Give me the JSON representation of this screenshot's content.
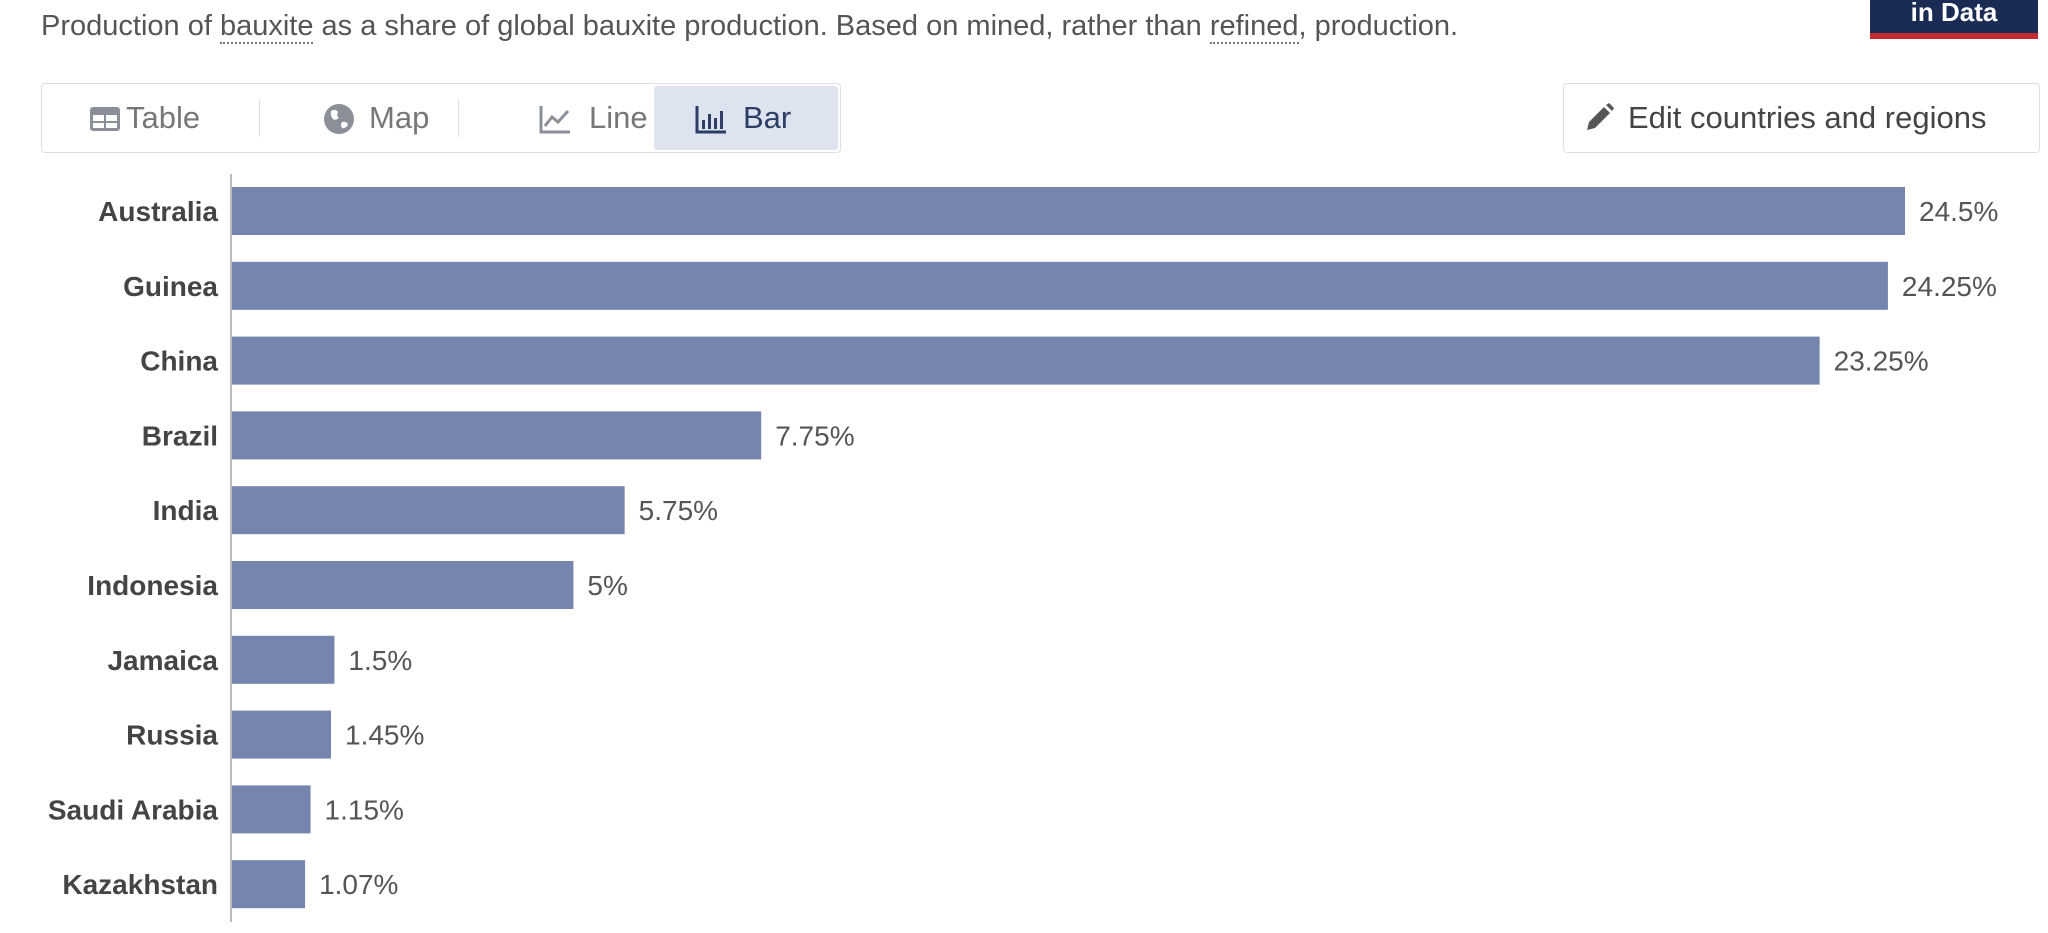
{
  "header": {
    "subtitle_a": "Production of ",
    "subtitle_term1": "bauxite",
    "subtitle_b": " as a share of global bauxite production. Based on mined, rather than ",
    "subtitle_term2": "refined",
    "subtitle_c": ", production.",
    "logo_text": "in Data"
  },
  "tabs": [
    {
      "label": "Table",
      "icon": "table-icon"
    },
    {
      "label": "Map",
      "icon": "globe-icon"
    },
    {
      "label": "Line",
      "icon": "line-chart-icon"
    },
    {
      "label": "Bar",
      "icon": "bar-chart-icon",
      "active": true
    }
  ],
  "edit_button": {
    "label": "Edit countries and regions",
    "icon": "pencil-icon"
  },
  "colors": {
    "bar": "#7585ae",
    "accent": "#2c3e63"
  },
  "chart_data": {
    "type": "bar",
    "orientation": "horizontal",
    "categories": [
      "Australia",
      "Guinea",
      "China",
      "Brazil",
      "India",
      "Indonesia",
      "Jamaica",
      "Russia",
      "Saudi Arabia",
      "Kazakhstan"
    ],
    "values": [
      24.5,
      24.25,
      23.25,
      7.75,
      5.75,
      5,
      1.5,
      1.45,
      1.15,
      1.07
    ],
    "value_labels": [
      "24.5%",
      "24.25%",
      "23.25%",
      "7.75%",
      "5.75%",
      "5%",
      "1.5%",
      "1.45%",
      "1.15%",
      "1.07%"
    ],
    "unit": "%",
    "xlim": [
      0,
      24.5
    ],
    "grid": false
  }
}
